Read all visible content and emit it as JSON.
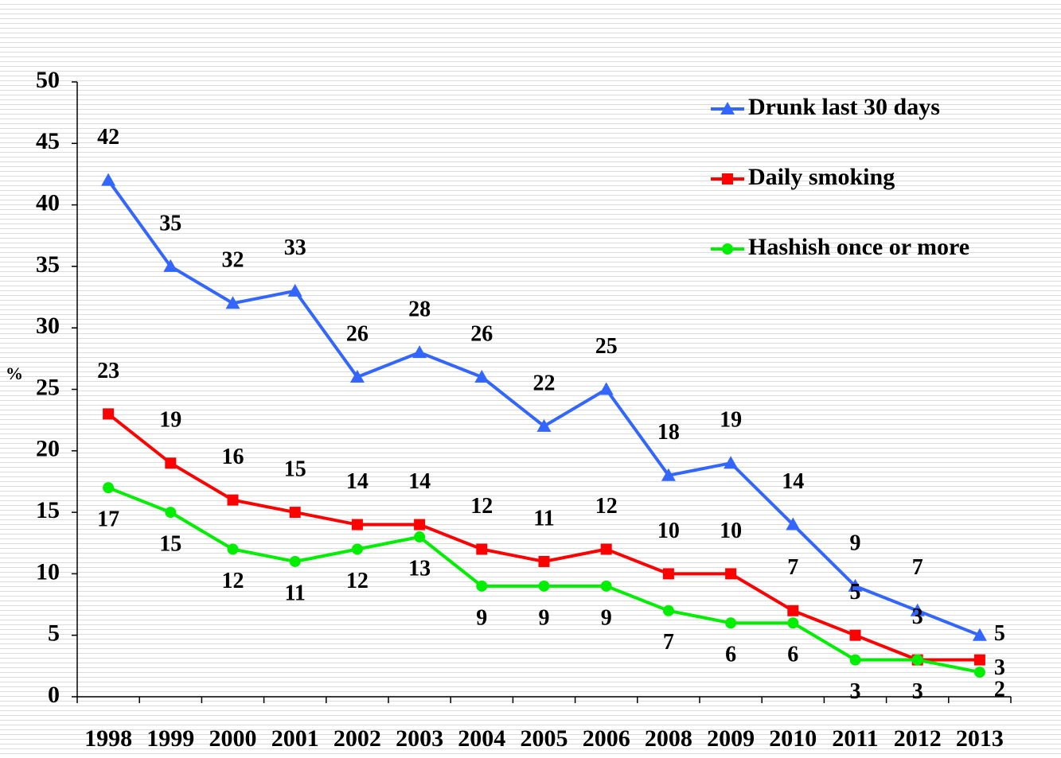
{
  "chart_data": {
    "type": "line",
    "y_label": "%",
    "categories": [
      "1998",
      "1999",
      "2000",
      "2001",
      "2002",
      "2003",
      "2004",
      "2005",
      "2006",
      "2008",
      "2009",
      "2010",
      "2011",
      "2012",
      "2013"
    ],
    "series": [
      {
        "name": "Drunk last 30 days",
        "color": "#3366ff",
        "marker": "triangle",
        "values": [
          42,
          35,
          32,
          33,
          26,
          28,
          26,
          22,
          25,
          18,
          19,
          14,
          9,
          7,
          5
        ]
      },
      {
        "name": "Daily smoking",
        "color": "#ff0000",
        "marker": "square",
        "values": [
          23,
          19,
          16,
          15,
          14,
          14,
          12,
          11,
          12,
          10,
          10,
          7,
          5,
          3,
          3
        ]
      },
      {
        "name": "Hashish once or more",
        "color": "#00ee00",
        "marker": "circle",
        "values": [
          17,
          15,
          12,
          11,
          12,
          13,
          9,
          9,
          9,
          7,
          6,
          6,
          3,
          3,
          2
        ]
      }
    ],
    "ylim": [
      0,
      50
    ],
    "yticks": [
      0,
      5,
      10,
      15,
      20,
      25,
      30,
      35,
      40,
      45,
      50
    ],
    "legend": "top-right"
  }
}
